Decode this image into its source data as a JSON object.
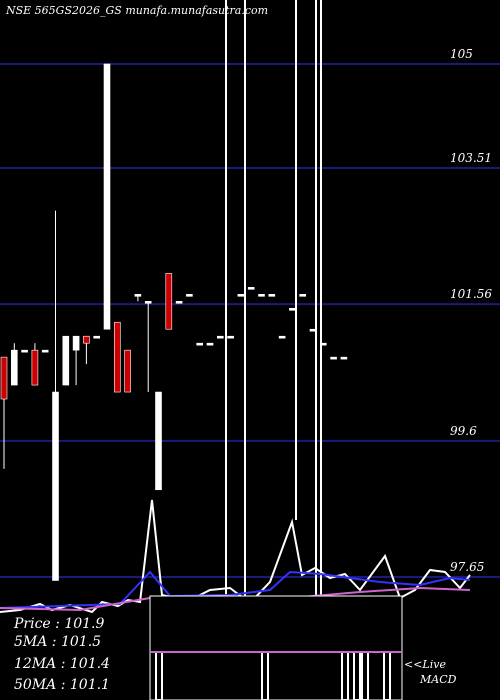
{
  "chart_data": {
    "type": "candlestick",
    "title": "NSE 565GS2026_GS munafa.munafasutra.com",
    "price_levels": [
      105,
      103.51,
      101.56,
      99.6,
      97.65
    ],
    "price_level_labels": [
      "105",
      "103.51",
      "101.56",
      "99.6",
      "97.65"
    ],
    "ylim": [
      97.0,
      106.0
    ],
    "grid_color": "#1a1a7a",
    "up_color": "#ffffff",
    "down_color": "#cc0000",
    "candles": [
      {
        "o": 100.8,
        "h": 100.8,
        "l": 99.2,
        "c": 100.2
      },
      {
        "o": 100.4,
        "h": 101.0,
        "l": 100.4,
        "c": 100.9
      },
      {
        "o": 100.9,
        "h": 100.9,
        "l": 100.9,
        "c": 100.9
      },
      {
        "o": 100.9,
        "h": 101.0,
        "l": 100.4,
        "c": 100.4
      },
      {
        "o": 100.9,
        "h": 100.9,
        "l": 100.9,
        "c": 100.9
      },
      {
        "o": 97.6,
        "h": 102.9,
        "l": 97.6,
        "c": 100.3
      },
      {
        "o": 100.4,
        "h": 101.1,
        "l": 100.4,
        "c": 101.1
      },
      {
        "o": 100.9,
        "h": 101.1,
        "l": 100.4,
        "c": 101.1
      },
      {
        "o": 101.1,
        "h": 101.1,
        "l": 100.7,
        "c": 101.0
      },
      {
        "o": 101.1,
        "h": 101.1,
        "l": 101.1,
        "c": 101.1
      },
      {
        "o": 101.2,
        "h": 105.0,
        "l": 101.2,
        "c": 105.0
      },
      {
        "o": 101.3,
        "h": 101.3,
        "l": 100.3,
        "c": 100.3
      },
      {
        "o": 100.9,
        "h": 100.9,
        "l": 100.3,
        "c": 100.3
      },
      {
        "o": 101.7,
        "h": 101.7,
        "l": 101.6,
        "c": 101.7
      },
      {
        "o": 101.6,
        "h": 101.6,
        "l": 100.3,
        "c": 101.6
      },
      {
        "o": 98.9,
        "h": 100.3,
        "l": 98.9,
        "c": 100.3
      },
      {
        "o": 102.0,
        "h": 102.0,
        "l": 101.2,
        "c": 101.2
      },
      {
        "o": 101.6,
        "h": 101.6,
        "l": 101.6,
        "c": 101.6
      },
      {
        "o": 101.7,
        "h": 101.7,
        "l": 101.7,
        "c": 101.7
      },
      {
        "o": 101.0,
        "h": 101.0,
        "l": 101.0,
        "c": 101.0
      },
      {
        "o": 101.0,
        "h": 101.0,
        "l": 101.0,
        "c": 101.0
      },
      {
        "o": 101.1,
        "h": 101.1,
        "l": 101.1,
        "c": 101.1
      },
      {
        "o": 101.1,
        "h": 101.1,
        "l": 101.1,
        "c": 101.1
      },
      {
        "o": 101.7,
        "h": 101.7,
        "l": 101.7,
        "c": 101.7
      },
      {
        "o": 101.8,
        "h": 101.8,
        "l": 101.8,
        "c": 101.8
      },
      {
        "o": 101.7,
        "h": 101.7,
        "l": 101.7,
        "c": 101.7
      },
      {
        "o": 101.7,
        "h": 101.7,
        "l": 101.7,
        "c": 101.7
      },
      {
        "o": 101.1,
        "h": 101.1,
        "l": 101.1,
        "c": 101.1
      },
      {
        "o": 101.5,
        "h": 101.5,
        "l": 101.5,
        "c": 101.5
      },
      {
        "o": 101.7,
        "h": 101.7,
        "l": 101.7,
        "c": 101.7
      },
      {
        "o": 101.2,
        "h": 101.2,
        "l": 101.2,
        "c": 101.2
      },
      {
        "o": 101.0,
        "h": 101.0,
        "l": 101.0,
        "c": 101.0
      },
      {
        "o": 100.8,
        "h": 100.8,
        "l": 100.8,
        "c": 100.8
      },
      {
        "o": 100.8,
        "h": 100.8,
        "l": 100.8,
        "c": 100.8
      }
    ],
    "stats": {
      "price": "Price   : 101.9",
      "ma5": "5MA : 101.5",
      "ma12": "12MA : 101.4",
      "ma50": "50MA : 101.1"
    },
    "macd_label": "<<Live MACD",
    "legend": "none"
  }
}
